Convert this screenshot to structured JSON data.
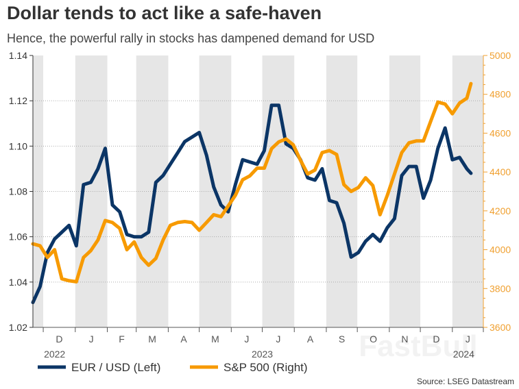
{
  "chart_data": {
    "type": "line",
    "title": "Dollar tends to act like a safe-haven",
    "subtitle": "Hence, the powerful rally in stocks has dampened demand for USD",
    "source": "Source: LSEG Datastream",
    "watermark": "FastBull",
    "x_range": [
      "2022-11-21",
      "2024-01-31"
    ],
    "y_left": {
      "range": [
        1.02,
        1.14
      ],
      "ticks": [
        "1.02",
        "1.04",
        "1.06",
        "1.08",
        "1.10",
        "1.12",
        "1.14"
      ],
      "color": "#333333"
    },
    "y_right": {
      "range": [
        3600,
        5000
      ],
      "ticks": [
        "3600",
        "3800",
        "4000",
        "4200",
        "4400",
        "4600",
        "4800",
        "5000"
      ],
      "color": "#f0a030"
    },
    "grid": "horizontal dotted",
    "shaded_months": "alternate",
    "months": [
      {
        "label": "",
        "start": "2022-11-01",
        "shaded": true
      },
      {
        "label": "D",
        "start": "2022-12-01",
        "shaded": false
      },
      {
        "label": "J",
        "start": "2023-01-01",
        "shaded": true
      },
      {
        "label": "F",
        "start": "2023-02-01",
        "shaded": false
      },
      {
        "label": "M",
        "start": "2023-03-01",
        "shaded": true
      },
      {
        "label": "A",
        "start": "2023-04-01",
        "shaded": false
      },
      {
        "label": "M",
        "start": "2023-05-01",
        "shaded": true
      },
      {
        "label": "J",
        "start": "2023-06-01",
        "shaded": false
      },
      {
        "label": "J",
        "start": "2023-07-01",
        "shaded": true
      },
      {
        "label": "A",
        "start": "2023-08-01",
        "shaded": false
      },
      {
        "label": "S",
        "start": "2023-09-01",
        "shaded": true
      },
      {
        "label": "O",
        "start": "2023-10-01",
        "shaded": false
      },
      {
        "label": "N",
        "start": "2023-11-01",
        "shaded": true
      },
      {
        "label": "D",
        "start": "2023-12-01",
        "shaded": false
      },
      {
        "label": "J",
        "start": "2024-01-01",
        "shaded": true
      }
    ],
    "years": [
      {
        "label": "2022",
        "at": "2022-12-12"
      },
      {
        "label": "2023",
        "at": "2023-07-01"
      },
      {
        "label": "2024",
        "at": "2024-01-12"
      }
    ],
    "legend_placement": "bottom-left",
    "x": [
      "2022-11-21",
      "2022-11-28",
      "2022-12-05",
      "2022-12-12",
      "2022-12-19",
      "2022-12-26",
      "2023-01-02",
      "2023-01-09",
      "2023-01-16",
      "2023-01-23",
      "2023-01-30",
      "2023-02-06",
      "2023-02-13",
      "2023-02-20",
      "2023-02-27",
      "2023-03-06",
      "2023-03-13",
      "2023-03-20",
      "2023-03-27",
      "2023-04-03",
      "2023-04-10",
      "2023-04-17",
      "2023-04-24",
      "2023-05-01",
      "2023-05-08",
      "2023-05-15",
      "2023-05-22",
      "2023-05-29",
      "2023-06-05",
      "2023-06-12",
      "2023-06-19",
      "2023-06-26",
      "2023-07-03",
      "2023-07-10",
      "2023-07-17",
      "2023-07-24",
      "2023-07-31",
      "2023-08-07",
      "2023-08-14",
      "2023-08-21",
      "2023-08-28",
      "2023-09-04",
      "2023-09-11",
      "2023-09-18",
      "2023-09-25",
      "2023-10-02",
      "2023-10-09",
      "2023-10-16",
      "2023-10-23",
      "2023-10-30",
      "2023-11-06",
      "2023-11-13",
      "2023-11-20",
      "2023-11-27",
      "2023-12-04",
      "2023-12-11",
      "2023-12-18",
      "2023-12-25",
      "2024-01-01",
      "2024-01-08",
      "2024-01-15",
      "2024-01-19"
    ],
    "series": [
      {
        "name": "EUR / USD (Left)",
        "axis": "left",
        "color": "#0b3566",
        "values": [
          1.031,
          1.038,
          1.053,
          1.059,
          1.062,
          1.065,
          1.056,
          1.083,
          1.084,
          1.09,
          1.099,
          1.074,
          1.071,
          1.061,
          1.06,
          1.06,
          1.062,
          1.084,
          1.087,
          1.092,
          1.097,
          1.102,
          1.104,
          1.106,
          1.096,
          1.082,
          1.074,
          1.071,
          1.083,
          1.094,
          1.093,
          1.092,
          1.098,
          1.118,
          1.118,
          1.101,
          1.099,
          1.094,
          1.086,
          1.085,
          1.09,
          1.076,
          1.075,
          1.066,
          1.051,
          1.053,
          1.058,
          1.061,
          1.058,
          1.064,
          1.068,
          1.087,
          1.091,
          1.091,
          1.077,
          1.085,
          1.099,
          1.108,
          1.094,
          1.095,
          1.09,
          1.088
        ]
      },
      {
        "name": "S&P 500 (Right)",
        "axis": "right",
        "color": "#f79a00",
        "values": [
          4030,
          4020,
          3960,
          4000,
          3850,
          3840,
          3835,
          3960,
          3995,
          4050,
          4150,
          4140,
          4110,
          4000,
          4040,
          3960,
          3920,
          3955,
          4050,
          4125,
          4140,
          4145,
          4140,
          4100,
          4140,
          4180,
          4170,
          4225,
          4280,
          4360,
          4380,
          4420,
          4420,
          4520,
          4555,
          4570,
          4540,
          4460,
          4390,
          4410,
          4500,
          4510,
          4490,
          4335,
          4300,
          4320,
          4370,
          4330,
          4180,
          4280,
          4390,
          4500,
          4550,
          4560,
          4560,
          4660,
          4760,
          4750,
          4700,
          4755,
          4780,
          4855
        ]
      }
    ]
  }
}
